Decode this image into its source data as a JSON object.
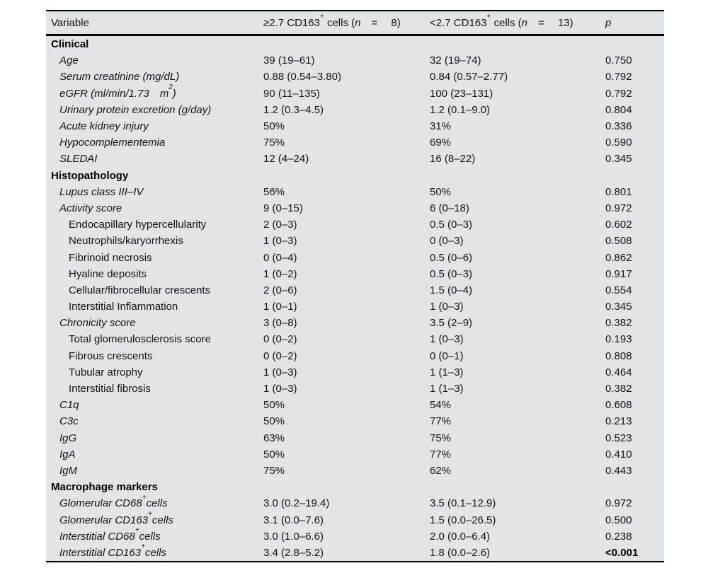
{
  "table": {
    "header": {
      "columns": [
        "Variable",
        "≥2.7 CD163^+^ cells (~n~ =  8)",
        "<2.7 CD163^+^ cells (~n~ =  13)",
        "~p~"
      ]
    },
    "sections": [
      {
        "title": "Clinical",
        "rows": [
          {
            "label": "Age",
            "indent": 1,
            "italic": true,
            "g1": "39 (19–61)",
            "g2": "32 (19–74)",
            "p": "0.750"
          },
          {
            "label": "Serum creatinine (mg/dL)",
            "indent": 1,
            "italic": true,
            "g1": "0.88 (0.54–3.80)",
            "g2": "0.84 (0.57–2.77)",
            "p": "0.792"
          },
          {
            "label": "eGFR (ml/min/1.73 m^2^)",
            "indent": 1,
            "italic": true,
            "g1": "90 (11–135)",
            "g2": "100 (23–131)",
            "p": "0.792"
          },
          {
            "label": "Urinary protein excretion (g/day)",
            "indent": 1,
            "italic": true,
            "g1": "1.2 (0.3–4.5)",
            "g2": "1.2 (0.1–9.0)",
            "p": "0.804"
          },
          {
            "label": "Acute kidney injury",
            "indent": 1,
            "italic": true,
            "g1": "50%",
            "g2": "31%",
            "p": "0.336"
          },
          {
            "label": "Hypocomplementemia",
            "indent": 1,
            "italic": true,
            "g1": "75%",
            "g2": "69%",
            "p": "0.590"
          },
          {
            "label": "SLEDAI",
            "indent": 1,
            "italic": true,
            "g1": "12 (4–24)",
            "g2": "16 (8–22)",
            "p": "0.345"
          }
        ]
      },
      {
        "title": "Histopathology",
        "rows": [
          {
            "label": "Lupus class III–IV",
            "indent": 1,
            "italic": true,
            "g1": "56%",
            "g2": "50%",
            "p": "0.801"
          },
          {
            "label": "Activity score",
            "indent": 1,
            "italic": true,
            "g1": "9 (0–15)",
            "g2": "6 (0–18)",
            "p": "0.972"
          },
          {
            "label": "Endocapillary hypercellularity",
            "indent": 2,
            "italic": false,
            "g1": "2 (0–3)",
            "g2": "0.5 (0–3)",
            "p": "0.602"
          },
          {
            "label": "Neutrophils/karyorrhexis",
            "indent": 2,
            "italic": false,
            "g1": "1 (0–3)",
            "g2": "0 (0–3)",
            "p": "0.508"
          },
          {
            "label": "Fibrinoid necrosis",
            "indent": 2,
            "italic": false,
            "g1": "0 (0–4)",
            "g2": "0.5 (0–6)",
            "p": "0.862"
          },
          {
            "label": "Hyaline deposits",
            "indent": 2,
            "italic": false,
            "g1": "1 (0–2)",
            "g2": "0.5 (0–3)",
            "p": "0.917"
          },
          {
            "label": "Cellular/fibrocellular crescents",
            "indent": 2,
            "italic": false,
            "g1": "2 (0–6)",
            "g2": "1.5 (0–4)",
            "p": "0.554"
          },
          {
            "label": "Interstitial Inflammation",
            "indent": 2,
            "italic": false,
            "g1": "1 (0–1)",
            "g2": "1 (0–3)",
            "p": "0.345"
          },
          {
            "label": "Chronicity score",
            "indent": 1,
            "italic": true,
            "g1": "3 (0–8)",
            "g2": "3.5 (2–9)",
            "p": "0.382"
          },
          {
            "label": "Total glomerulosclerosis score",
            "indent": 2,
            "italic": false,
            "g1": "0 (0–2)",
            "g2": "1 (0–3)",
            "p": "0.193"
          },
          {
            "label": "Fibrous crescents",
            "indent": 2,
            "italic": false,
            "g1": "0 (0–2)",
            "g2": "0 (0–1)",
            "p": "0.808"
          },
          {
            "label": "Tubular atrophy",
            "indent": 2,
            "italic": false,
            "g1": "1 (0–3)",
            "g2": "1 (1–3)",
            "p": "0.464"
          },
          {
            "label": "Interstitial fibrosis",
            "indent": 2,
            "italic": false,
            "g1": "1 (0–3)",
            "g2": "1 (1–3)",
            "p": "0.382"
          },
          {
            "label": "C1q",
            "indent": 1,
            "italic": true,
            "g1": "50%",
            "g2": "54%",
            "p": "0.608"
          },
          {
            "label": "C3c",
            "indent": 1,
            "italic": true,
            "g1": "50%",
            "g2": "77%",
            "p": "0.213"
          },
          {
            "label": "IgG",
            "indent": 1,
            "italic": true,
            "g1": "63%",
            "g2": "75%",
            "p": "0.523"
          },
          {
            "label": "IgA",
            "indent": 1,
            "italic": true,
            "g1": "50%",
            "g2": "77%",
            "p": "0.410"
          },
          {
            "label": "IgM",
            "indent": 1,
            "italic": true,
            "g1": "75%",
            "g2": "62%",
            "p": "0.443"
          }
        ]
      },
      {
        "title": "Macrophage markers",
        "rows": [
          {
            "label": "Glomerular CD68^+^cells",
            "indent": 1,
            "italic": true,
            "g1": "3.0 (0.2–19.4)",
            "g2": "3.5 (0.1–12.9)",
            "p": "0.972"
          },
          {
            "label": "Glomerular CD163^+^cells",
            "indent": 1,
            "italic": true,
            "g1": "3.1 (0.0–7.6)",
            "g2": "1.5 (0.0–26.5)",
            "p": "0.500"
          },
          {
            "label": "Interstitial CD68^+^cells",
            "indent": 1,
            "italic": true,
            "g1": "3.0 (1.0–6.6)",
            "g2": "2.0 (0.0–6.4)",
            "p": "0.238"
          },
          {
            "label": "Interstitial CD163^+^cells",
            "indent": 1,
            "italic": true,
            "g1": "3.4 (2.8–5.2)",
            "g2": "1.8 (0.0–2.6)",
            "p": "<0.001",
            "pBold": true
          }
        ]
      }
    ],
    "colors": {
      "panel_background": "#e1e5e8",
      "rule": "#000000",
      "text": "#111111"
    }
  }
}
